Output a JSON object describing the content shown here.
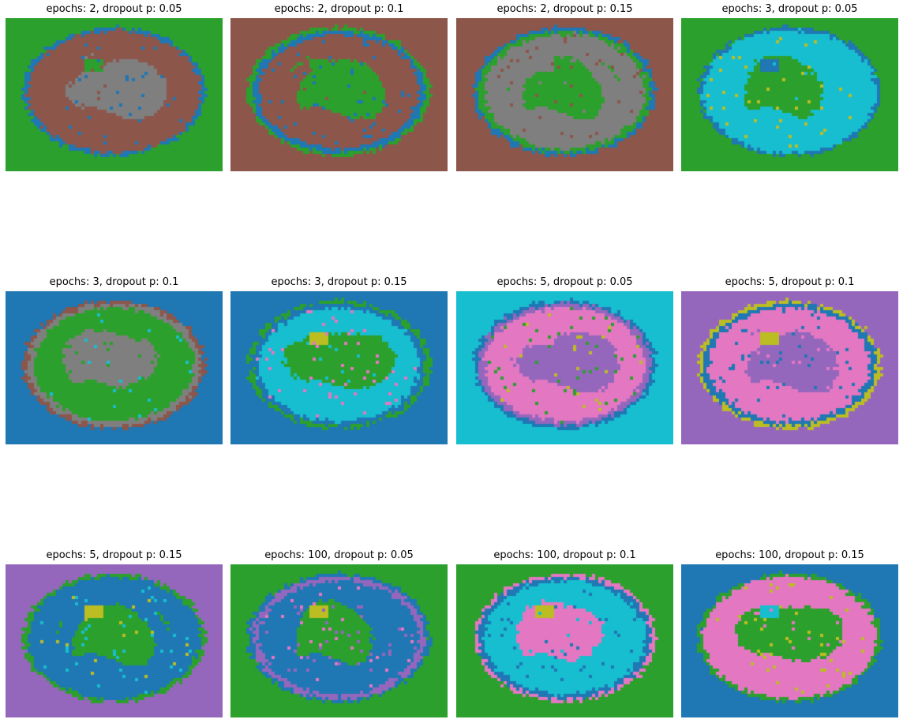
{
  "chart_data": {
    "type": "heatmap",
    "palette": {
      "blue": "#1f77b4",
      "green": "#2ca02c",
      "brown": "#8c564b",
      "gray": "#7f7f7f",
      "cyan": "#17becf",
      "purple": "#9467bd",
      "pink": "#e377c2",
      "olive": "#bcbd22"
    },
    "panels": [
      {
        "title": "epochs: 2, dropout p: 0.05",
        "epochs": 2,
        "dropout_p": 0.05,
        "background": "#2ca02c",
        "outer": "#1f77b4",
        "rim": "#8c564b",
        "ring": "#8c564b",
        "core": "#7f7f7f",
        "blob": "#2ca02c",
        "specks": "#1f77b4",
        "specks2": "#8c564b"
      },
      {
        "title": "epochs: 2, dropout p: 0.1",
        "epochs": 2,
        "dropout_p": 0.1,
        "background": "#8c564b",
        "outer": "#2ca02c",
        "rim": "#1f77b4",
        "ring": "#8c564b",
        "core": "#2ca02c",
        "blob": "#2ca02c",
        "specks": "#1f77b4",
        "specks2": "#8c564b"
      },
      {
        "title": "epochs: 2, dropout p: 0.15",
        "epochs": 2,
        "dropout_p": 0.15,
        "background": "#8c564b",
        "outer": "#1f77b4",
        "rim": "#2ca02c",
        "ring": "#7f7f7f",
        "core": "#2ca02c",
        "blob": "#7f7f7f",
        "specks": "#8c564b",
        "specks2": "#7f7f7f"
      },
      {
        "title": "epochs: 3, dropout p: 0.05",
        "epochs": 3,
        "dropout_p": 0.05,
        "background": "#2ca02c",
        "outer": "#1f77b4",
        "rim": "#17becf",
        "ring": "#17becf",
        "core": "#2ca02c",
        "blob": "#1f77b4",
        "specks": "#bcbd22",
        "specks2": "#17becf"
      },
      {
        "title": "epochs: 3, dropout p: 0.1",
        "epochs": 3,
        "dropout_p": 0.1,
        "background": "#1f77b4",
        "outer": "#8c564b",
        "rim": "#7f7f7f",
        "ring": "#2ca02c",
        "core": "#7f7f7f",
        "blob": "#7f7f7f",
        "specks": "#2ca02c",
        "specks2": "#17becf"
      },
      {
        "title": "epochs: 3, dropout p: 0.15",
        "epochs": 3,
        "dropout_p": 0.15,
        "background": "#1f77b4",
        "outer": "#2ca02c",
        "rim": "#1f77b4",
        "ring": "#17becf",
        "core": "#2ca02c",
        "blob": "#bcbd22",
        "specks": "#e377c2",
        "specks2": "#17becf"
      },
      {
        "title": "epochs: 5, dropout p: 0.05",
        "epochs": 5,
        "dropout_p": 0.05,
        "background": "#17becf",
        "outer": "#1f77b4",
        "rim": "#9467bd",
        "ring": "#e377c2",
        "core": "#9467bd",
        "blob": "#e377c2",
        "specks": "#2ca02c",
        "specks2": "#bcbd22"
      },
      {
        "title": "epochs: 5, dropout p: 0.1",
        "epochs": 5,
        "dropout_p": 0.1,
        "background": "#9467bd",
        "outer": "#bcbd22",
        "rim": "#1f77b4",
        "ring": "#e377c2",
        "core": "#9467bd",
        "blob": "#bcbd22",
        "specks": "#1f77b4",
        "specks2": "#e377c2"
      },
      {
        "title": "epochs: 5, dropout p: 0.15",
        "epochs": 5,
        "dropout_p": 0.15,
        "background": "#9467bd",
        "outer": "#2ca02c",
        "rim": "#1f77b4",
        "ring": "#1f77b4",
        "core": "#2ca02c",
        "blob": "#bcbd22",
        "specks": "#17becf",
        "specks2": "#bcbd22"
      },
      {
        "title": "epochs: 100, dropout p: 0.05",
        "epochs": 100,
        "dropout_p": 0.05,
        "background": "#2ca02c",
        "outer": "#1f77b4",
        "rim": "#9467bd",
        "ring": "#1f77b4",
        "core": "#2ca02c",
        "blob": "#bcbd22",
        "specks": "#9467bd",
        "specks2": "#e377c2"
      },
      {
        "title": "epochs: 100, dropout p: 0.1",
        "epochs": 100,
        "dropout_p": 0.1,
        "background": "#2ca02c",
        "outer": "#e377c2",
        "rim": "#1f77b4",
        "ring": "#17becf",
        "core": "#e377c2",
        "blob": "#bcbd22",
        "specks": "#1f77b4",
        "specks2": "#17becf"
      },
      {
        "title": "epochs: 100, dropout p: 0.15",
        "epochs": 100,
        "dropout_p": 0.15,
        "background": "#1f77b4",
        "outer": "#2ca02c",
        "rim": "#e377c2",
        "ring": "#e377c2",
        "core": "#2ca02c",
        "blob": "#17becf",
        "specks": "#bcbd22",
        "specks2": "#e377c2"
      }
    ]
  }
}
